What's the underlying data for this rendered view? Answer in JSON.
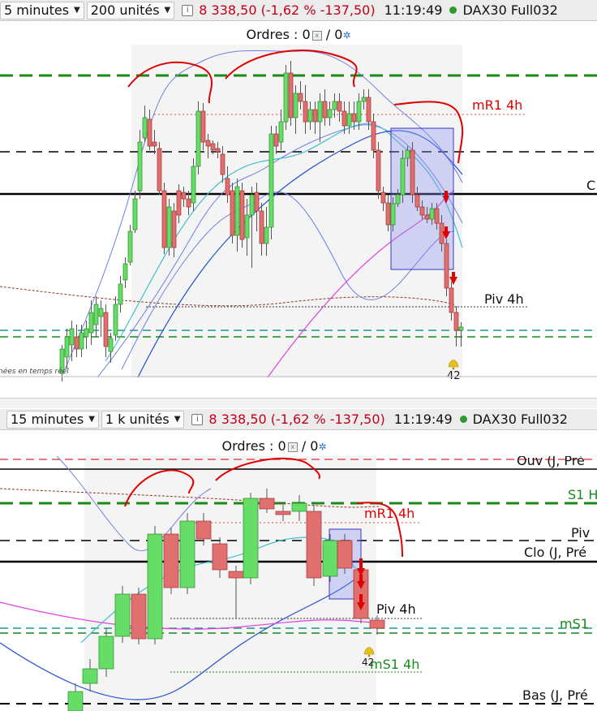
{
  "top": {
    "timeframe": "5 minutes",
    "units": "200 unités",
    "quote": "8 338,50 (-1,62 % -137,50)",
    "time": "11:19:49",
    "symbol": "DAX30 Full032",
    "orders": "Ordres : 0",
    "orders_b": "/ 0",
    "labels": {
      "mr1": "mR1 4h",
      "clo": "C",
      "piv": "Piv 4h",
      "alert": "42",
      "realtime": "nées en temps réel"
    }
  },
  "bottom": {
    "timeframe": "15 minutes",
    "units": "1 k unités",
    "quote": "8 338,50 (-1,62 % -137,50)",
    "time": "11:19:49",
    "symbol": "DAX30 Full032",
    "orders": "Ordres : 0",
    "orders_b": "/ 0",
    "labels": {
      "ouv": "Ouv (J, Pré",
      "s1": "S1 H",
      "mr1": "mR1 4h",
      "piv_r": "Piv",
      "clo": "Clo (J, Pré",
      "piv": "Piv 4h",
      "ms1_r": "mS1",
      "alert": "42",
      "ms1": "mS1 4h",
      "bas": "Bas (J, Pré"
    }
  },
  "colors": {
    "up": "#66dd66",
    "down": "#e07070",
    "quote": "#c0001a",
    "annot": "#e00000",
    "green_level": "#1a8a1a"
  }
}
